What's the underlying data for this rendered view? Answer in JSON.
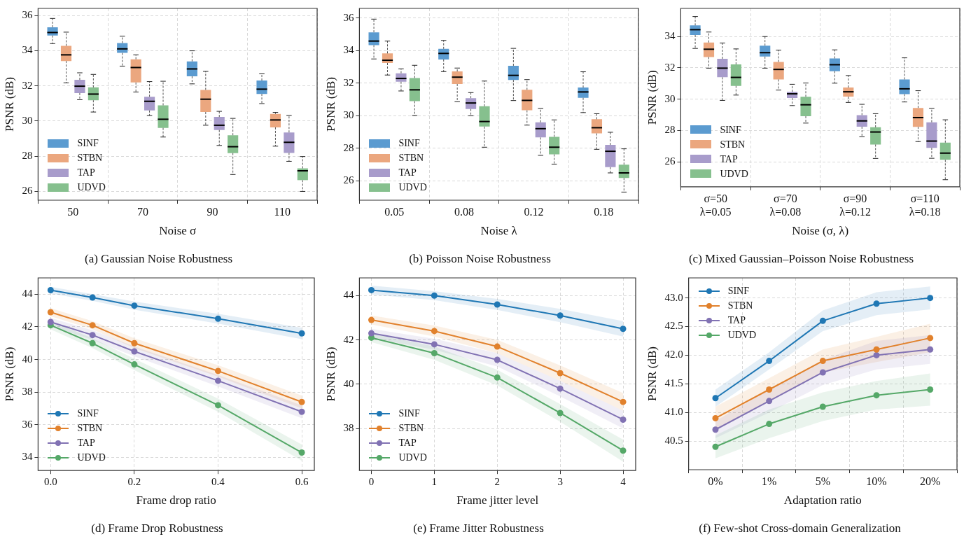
{
  "chart_data": [
    {
      "type": "box",
      "title": "(a) Gaussian Noise Robustness",
      "xlabel": "Noise σ",
      "ylabel": "PSNR (dB)",
      "categories": [
        "50",
        "70",
        "90",
        "110"
      ],
      "ylim": [
        25.5,
        36.4
      ],
      "yticks": [
        26,
        28,
        30,
        32,
        34,
        36
      ],
      "grid": true,
      "legend": "bottom left",
      "series": [
        {
          "name": "SINF",
          "color": "#5b9bd0",
          "boxes": [
            {
              "low": 34.4,
              "q1": 34.86,
              "median": 35.03,
              "q3": 35.33,
              "high": 35.83
            },
            {
              "low": 33.12,
              "q1": 33.87,
              "median": 34.1,
              "q3": 34.43,
              "high": 34.82
            },
            {
              "low": 32.11,
              "q1": 32.54,
              "median": 32.96,
              "q3": 33.39,
              "high": 33.99
            },
            {
              "low": 30.99,
              "q1": 31.54,
              "median": 31.81,
              "q3": 32.3,
              "high": 32.68
            }
          ]
        },
        {
          "name": "STBN",
          "color": "#eba77f",
          "boxes": [
            {
              "low": 32.17,
              "q1": 33.41,
              "median": 33.76,
              "q3": 34.27,
              "high": 35.05
            },
            {
              "low": 31.65,
              "q1": 32.19,
              "median": 33.04,
              "q3": 33.51,
              "high": 33.76
            },
            {
              "low": 29.76,
              "q1": 30.51,
              "median": 31.24,
              "q3": 31.77,
              "high": 32.82
            },
            {
              "low": 28.57,
              "q1": 29.64,
              "median": 30.06,
              "q3": 30.4,
              "high": 30.49
            }
          ]
        },
        {
          "name": "TAP",
          "color": "#a89ccb",
          "boxes": [
            {
              "low": 31.21,
              "q1": 31.59,
              "median": 31.98,
              "q3": 32.34,
              "high": 32.74
            },
            {
              "low": 30.31,
              "q1": 30.6,
              "median": 31.12,
              "q3": 31.38,
              "high": 32.24
            },
            {
              "low": 28.61,
              "q1": 29.49,
              "median": 29.76,
              "q3": 30.23,
              "high": 30.55
            },
            {
              "low": 27.71,
              "q1": 28.19,
              "median": 28.79,
              "q3": 29.35,
              "high": 30.32
            }
          ]
        },
        {
          "name": "UDVD",
          "color": "#86c08e",
          "boxes": [
            {
              "low": 30.51,
              "q1": 31.18,
              "median": 31.53,
              "q3": 31.91,
              "high": 32.65
            },
            {
              "low": 29.09,
              "q1": 29.61,
              "median": 30.1,
              "q3": 30.89,
              "high": 32.26
            },
            {
              "low": 26.96,
              "q1": 28.18,
              "median": 28.54,
              "q3": 29.19,
              "high": 30.15
            },
            {
              "low": 26.0,
              "q1": 26.64,
              "median": 27.17,
              "q3": 27.31,
              "high": 27.98
            }
          ]
        }
      ]
    },
    {
      "type": "box",
      "title": "(b) Poisson Noise Robustness",
      "xlabel": "Noise λ",
      "ylabel": "PSNR (dB)",
      "categories": [
        "0.05",
        "0.08",
        "0.12",
        "0.18"
      ],
      "ylim": [
        24.8,
        36.6
      ],
      "yticks": [
        26,
        28,
        30,
        32,
        34,
        36
      ],
      "grid": true,
      "legend": "bottom left",
      "series": [
        {
          "name": "SINF",
          "color": "#5b9bd0",
          "boxes": [
            {
              "low": 33.49,
              "q1": 34.34,
              "median": 34.59,
              "q3": 35.13,
              "high": 35.94
            },
            {
              "low": 32.71,
              "q1": 33.46,
              "median": 33.83,
              "q3": 34.11,
              "high": 34.63
            },
            {
              "low": 30.93,
              "q1": 32.2,
              "median": 32.48,
              "q3": 33.07,
              "high": 34.14
            },
            {
              "low": 30.19,
              "q1": 31.1,
              "median": 31.46,
              "q3": 31.73,
              "high": 32.7
            }
          ]
        },
        {
          "name": "STBN",
          "color": "#eba77f",
          "boxes": [
            {
              "low": 32.5,
              "q1": 33.24,
              "median": 33.41,
              "q3": 33.83,
              "high": 34.59
            },
            {
              "low": 30.86,
              "q1": 31.95,
              "median": 32.37,
              "q3": 32.72,
              "high": 32.93
            },
            {
              "low": 29.42,
              "q1": 30.33,
              "median": 30.94,
              "q3": 31.59,
              "high": 32.22
            },
            {
              "low": 27.93,
              "q1": 28.91,
              "median": 29.26,
              "q3": 29.78,
              "high": 30.12
            }
          ]
        },
        {
          "name": "TAP",
          "color": "#a89ccb",
          "boxes": [
            {
              "low": 31.52,
              "q1": 32.09,
              "median": 32.29,
              "q3": 32.61,
              "high": 32.88
            },
            {
              "low": 29.99,
              "q1": 30.41,
              "median": 30.78,
              "q3": 31.08,
              "high": 31.42
            },
            {
              "low": 27.56,
              "q1": 28.66,
              "median": 29.2,
              "q3": 29.59,
              "high": 30.45
            },
            {
              "low": 26.48,
              "q1": 26.83,
              "median": 27.81,
              "q3": 28.2,
              "high": 28.98
            }
          ]
        },
        {
          "name": "UDVD",
          "color": "#86c08e",
          "boxes": [
            {
              "low": 30.01,
              "q1": 30.89,
              "median": 31.59,
              "q3": 32.32,
              "high": 33.1
            },
            {
              "low": 28.06,
              "q1": 29.33,
              "median": 29.64,
              "q3": 30.58,
              "high": 32.13
            },
            {
              "low": 27.02,
              "q1": 27.62,
              "median": 28.06,
              "q3": 28.7,
              "high": 29.74
            },
            {
              "low": 25.3,
              "q1": 26.17,
              "median": 26.48,
              "q3": 26.99,
              "high": 27.96
            }
          ]
        }
      ]
    },
    {
      "type": "box",
      "title": "(c) Mixed Gaussian–Poisson Noise Robustness",
      "xlabel": "Noise (σ, λ)",
      "ylabel": "PSNR (dB)",
      "categories": [
        "σ=50\nλ=0.05",
        "σ=70\nλ=0.08",
        "σ=90\nλ=0.12",
        "σ=110\nλ=0.18"
      ],
      "ylim": [
        24.4,
        35.8
      ],
      "yticks": [
        26,
        28,
        30,
        32,
        34
      ],
      "grid": true,
      "legend": "bottom left",
      "series": [
        {
          "name": "SINF",
          "color": "#5b9bd0",
          "boxes": [
            {
              "low": 33.24,
              "q1": 34.1,
              "median": 34.44,
              "q3": 34.71,
              "high": 35.28
            },
            {
              "low": 31.98,
              "q1": 32.72,
              "median": 32.97,
              "q3": 33.42,
              "high": 34.0
            },
            {
              "low": 31.02,
              "q1": 31.79,
              "median": 32.2,
              "q3": 32.6,
              "high": 33.15
            },
            {
              "low": 29.82,
              "q1": 30.32,
              "median": 30.66,
              "q3": 31.26,
              "high": 32.64
            }
          ]
        },
        {
          "name": "STBN",
          "color": "#eba77f",
          "boxes": [
            {
              "low": 31.98,
              "q1": 32.69,
              "median": 33.19,
              "q3": 33.62,
              "high": 34.29
            },
            {
              "low": 30.58,
              "q1": 31.26,
              "median": 31.9,
              "q3": 32.38,
              "high": 33.13
            },
            {
              "low": 29.79,
              "q1": 30.16,
              "median": 30.47,
              "q3": 30.74,
              "high": 31.51
            },
            {
              "low": 27.29,
              "q1": 28.23,
              "median": 28.82,
              "q3": 29.44,
              "high": 30.54
            }
          ]
        },
        {
          "name": "TAP",
          "color": "#a89ccb",
          "boxes": [
            {
              "low": 29.92,
              "q1": 31.4,
              "median": 31.98,
              "q3": 32.58,
              "high": 33.59
            },
            {
              "low": 29.59,
              "q1": 30.07,
              "median": 30.34,
              "q3": 30.47,
              "high": 30.95
            },
            {
              "low": 27.59,
              "q1": 28.24,
              "median": 28.61,
              "q3": 28.98,
              "high": 29.67
            },
            {
              "low": 26.22,
              "q1": 26.89,
              "median": 27.32,
              "q3": 28.52,
              "high": 29.42
            }
          ]
        },
        {
          "name": "UDVD",
          "color": "#86c08e",
          "boxes": [
            {
              "low": 30.26,
              "q1": 30.85,
              "median": 31.39,
              "q3": 32.22,
              "high": 33.21
            },
            {
              "low": 28.47,
              "q1": 28.91,
              "median": 29.64,
              "q3": 30.15,
              "high": 31.03
            },
            {
              "low": 26.21,
              "q1": 27.1,
              "median": 27.9,
              "q3": 28.2,
              "high": 29.07
            },
            {
              "low": 24.85,
              "q1": 26.12,
              "median": 26.55,
              "q3": 27.22,
              "high": 28.68
            }
          ]
        }
      ]
    },
    {
      "type": "line",
      "title": "(d) Frame Drop Robustness",
      "xlabel": "Frame drop ratio",
      "ylabel": "PSNR (dB)",
      "x": [
        0,
        0.1,
        0.2,
        0.4,
        0.6
      ],
      "xlim": [
        -0.03,
        0.63
      ],
      "xticks": [
        {
          "value": 0,
          "label": "0.0"
        },
        0.2,
        0.4,
        0.6
      ],
      "ylim": [
        33.2,
        45.0
      ],
      "yticks": [
        34,
        36,
        38,
        40,
        42,
        44
      ],
      "grid": true,
      "legend": "bottom left",
      "marker": "circle",
      "series": [
        {
          "name": "SINF",
          "color": "#1f77b4",
          "values": [
            44.25,
            43.8,
            43.3,
            42.5,
            41.6
          ],
          "lower": [
            44.05,
            43.6,
            43.05,
            42.2,
            41.25
          ],
          "upper": [
            44.45,
            44.0,
            43.55,
            42.8,
            41.95
          ]
        },
        {
          "name": "STBN",
          "color": "#e1812c",
          "values": [
            42.9,
            42.1,
            41.0,
            39.3,
            37.4
          ],
          "lower": [
            42.65,
            41.85,
            40.7,
            38.95,
            37.0
          ],
          "upper": [
            43.15,
            42.35,
            41.3,
            39.65,
            37.8
          ]
        },
        {
          "name": "TAP",
          "color": "#8172b3",
          "values": [
            42.3,
            41.5,
            40.5,
            38.7,
            36.8
          ],
          "lower": [
            42.05,
            41.2,
            40.2,
            38.35,
            36.4
          ],
          "upper": [
            42.55,
            41.8,
            40.8,
            39.05,
            37.2
          ]
        },
        {
          "name": "UDVD",
          "color": "#55a868",
          "values": [
            42.1,
            41.0,
            39.7,
            37.2,
            34.3
          ],
          "lower": [
            41.85,
            40.7,
            39.35,
            36.8,
            33.8
          ],
          "upper": [
            42.35,
            41.3,
            40.05,
            37.6,
            34.8
          ]
        }
      ]
    },
    {
      "type": "line",
      "title": "(e) Frame Jitter Robustness",
      "xlabel": "Frame jitter level",
      "ylabel": "PSNR (dB)",
      "x": [
        0,
        1,
        2,
        3,
        4
      ],
      "xlim": [
        -0.19,
        4.2
      ],
      "xticks": [
        0,
        1,
        2,
        3,
        4
      ],
      "ylim": [
        36.1,
        44.8
      ],
      "yticks": [
        38,
        40,
        42,
        44
      ],
      "grid": true,
      "legend": "bottom left",
      "marker": "circle",
      "series": [
        {
          "name": "SINF",
          "color": "#1f77b4",
          "values": [
            44.25,
            44.0,
            43.6,
            43.1,
            42.5
          ],
          "lower": [
            44.05,
            43.8,
            43.35,
            42.8,
            42.15
          ],
          "upper": [
            44.45,
            44.2,
            43.85,
            43.4,
            42.85
          ]
        },
        {
          "name": "STBN",
          "color": "#e1812c",
          "values": [
            42.9,
            42.4,
            41.7,
            40.5,
            39.2
          ],
          "lower": [
            42.7,
            42.15,
            41.4,
            40.15,
            38.8
          ],
          "upper": [
            43.1,
            42.65,
            42.0,
            40.85,
            39.6
          ]
        },
        {
          "name": "TAP",
          "color": "#8172b3",
          "values": [
            42.3,
            41.8,
            41.1,
            39.8,
            38.4
          ],
          "lower": [
            42.1,
            41.55,
            40.8,
            39.45,
            38.0
          ],
          "upper": [
            42.5,
            42.05,
            41.4,
            40.15,
            38.8
          ]
        },
        {
          "name": "UDVD",
          "color": "#55a868",
          "values": [
            42.1,
            41.4,
            40.3,
            38.7,
            37.0
          ],
          "lower": [
            41.9,
            41.1,
            39.95,
            38.3,
            36.5
          ],
          "upper": [
            42.3,
            41.7,
            40.65,
            39.1,
            37.5
          ]
        }
      ]
    },
    {
      "type": "line",
      "title": "(f) Few-shot Cross-domain Generalization",
      "xlabel": "Adaptation ratio",
      "ylabel": "PSNR (dB)",
      "categories": [
        "0%",
        "1%",
        "5%",
        "10%",
        "20%"
      ],
      "ylim": [
        40.0,
        43.35
      ],
      "yticks": [
        {
          "value": 40.5,
          "label": "40.5"
        },
        {
          "value": 41,
          "label": "41.0"
        },
        {
          "value": 41.5,
          "label": "41.5"
        },
        {
          "value": 42,
          "label": "42.0"
        },
        {
          "value": 42.5,
          "label": "42.5"
        },
        {
          "value": 43,
          "label": "43.0"
        }
      ],
      "grid": true,
      "legend": "top left",
      "marker": "circle",
      "series": [
        {
          "name": "SINF",
          "color": "#1f77b4",
          "values": [
            41.25,
            41.9,
            42.6,
            42.9,
            43.0
          ],
          "lower": [
            41.1,
            41.75,
            42.42,
            42.7,
            42.8
          ],
          "upper": [
            41.4,
            42.05,
            42.78,
            43.1,
            43.2
          ]
        },
        {
          "name": "STBN",
          "color": "#e1812c",
          "values": [
            40.9,
            41.4,
            41.9,
            42.1,
            42.3
          ],
          "lower": [
            40.7,
            41.2,
            41.7,
            41.88,
            42.05
          ],
          "upper": [
            41.1,
            41.6,
            42.1,
            42.32,
            42.55
          ]
        },
        {
          "name": "TAP",
          "color": "#8172b3",
          "values": [
            40.7,
            41.2,
            41.7,
            42.0,
            42.1
          ],
          "lower": [
            40.55,
            41.0,
            41.48,
            41.75,
            41.85
          ],
          "upper": [
            40.85,
            41.4,
            41.92,
            42.25,
            42.35
          ]
        },
        {
          "name": "UDVD",
          "color": "#55a868",
          "values": [
            40.4,
            40.8,
            41.1,
            41.3,
            41.4
          ],
          "lower": [
            40.2,
            40.55,
            40.85,
            41.05,
            41.12
          ],
          "upper": [
            40.6,
            41.05,
            41.35,
            41.55,
            41.68
          ]
        }
      ]
    }
  ]
}
